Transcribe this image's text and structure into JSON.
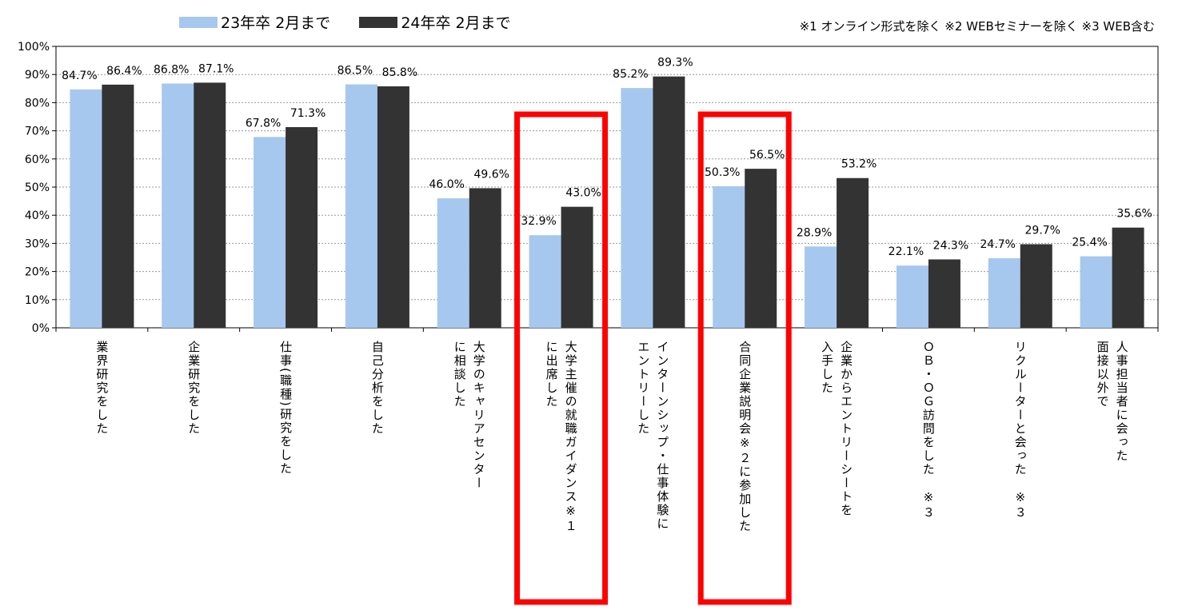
{
  "chart_data": {
    "type": "bar",
    "title": "",
    "xlabel": "",
    "ylabel": "",
    "ylim": [
      0,
      100
    ],
    "y_ticks": [
      "0%",
      "10%",
      "20%",
      "30%",
      "40%",
      "50%",
      "60%",
      "70%",
      "80%",
      "90%",
      "100%"
    ],
    "grid": "horizontal dotted",
    "legend_position": "top",
    "notes": "※1 オンライン形式を除く ※2 WEBセミナーを除く ※3 WEB含む",
    "categories": [
      [
        "業界研究をした"
      ],
      [
        "企業研究をした"
      ],
      [
        "仕事(職種)研究をした"
      ],
      [
        "自己分析をした"
      ],
      [
        "大学のキャリアセンター",
        "に相談した"
      ],
      [
        "大学主催の就職ガイダンス※１",
        "に出席した"
      ],
      [
        "インターンシップ・仕事体験に",
        "エントリーした"
      ],
      [
        "合同企業説明会※２に参加した"
      ],
      [
        "企業からエントリーシートを",
        "入手した"
      ],
      [
        "ＯＢ・ＯＧ訪問をした　※３"
      ],
      [
        "リクルーターと会った　※３"
      ],
      [
        "人事担当者に会った",
        "面接以外で"
      ]
    ],
    "series": [
      {
        "name": "23年卒 2月まで",
        "color": "#A6C8EE",
        "values": [
          84.7,
          86.8,
          67.8,
          86.5,
          46.0,
          32.9,
          85.2,
          50.3,
          28.9,
          22.1,
          24.7,
          25.4
        ],
        "labels": [
          "84.7%",
          "86.8%",
          "67.8%",
          "86.5%",
          "46.0%",
          "32.9%",
          "85.2%",
          "50.3%",
          "28.9%",
          "22.1%",
          "24.7%",
          "25.4%"
        ]
      },
      {
        "name": "24年卒 2月まで",
        "color": "#333333",
        "values": [
          86.4,
          87.1,
          71.3,
          85.8,
          49.6,
          43.0,
          89.3,
          56.5,
          53.2,
          24.3,
          29.7,
          35.6
        ],
        "labels": [
          "86.4%",
          "87.1%",
          "71.3%",
          "85.8%",
          "49.6%",
          "43.0%",
          "89.3%",
          "56.5%",
          "53.2%",
          "24.3%",
          "29.7%",
          "35.6%"
        ]
      }
    ],
    "highlighted_categories": [
      5,
      7
    ],
    "highlight_color": "#FF0000"
  }
}
